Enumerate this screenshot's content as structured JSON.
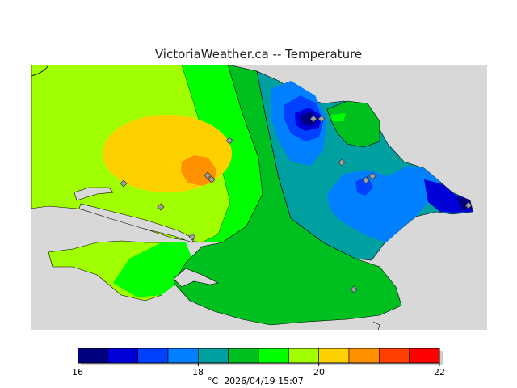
{
  "title": "VictoriaWeather.ca -- Temperature",
  "legend": {
    "ticks": [
      "16",
      "18",
      "20",
      "22"
    ],
    "unit": "°C",
    "timestamp": "2026/04/19 15:07",
    "bins": [
      {
        "from": 16.0,
        "to": 16.5,
        "color": "#000080"
      },
      {
        "from": 16.5,
        "to": 17.0,
        "color": "#0000d8"
      },
      {
        "from": 17.0,
        "to": 17.5,
        "color": "#0040ff"
      },
      {
        "from": 17.5,
        "to": 18.0,
        "color": "#0080ff"
      },
      {
        "from": 18.0,
        "to": 18.5,
        "color": "#00a0a0"
      },
      {
        "from": 18.5,
        "to": 19.0,
        "color": "#00c020"
      },
      {
        "from": 19.0,
        "to": 19.5,
        "color": "#00ff00"
      },
      {
        "from": 19.5,
        "to": 20.0,
        "color": "#a0ff00"
      },
      {
        "from": 20.0,
        "to": 20.5,
        "color": "#ffd000"
      },
      {
        "from": 20.5,
        "to": 21.0,
        "color": "#ff9000"
      },
      {
        "from": 21.0,
        "to": 21.5,
        "color": "#ff4000"
      },
      {
        "from": 21.5,
        "to": 22.0,
        "color": "#ff0000"
      }
    ]
  },
  "colors": {
    "water": "#d8d8d8",
    "station_marker": "#a0a0a0"
  }
}
